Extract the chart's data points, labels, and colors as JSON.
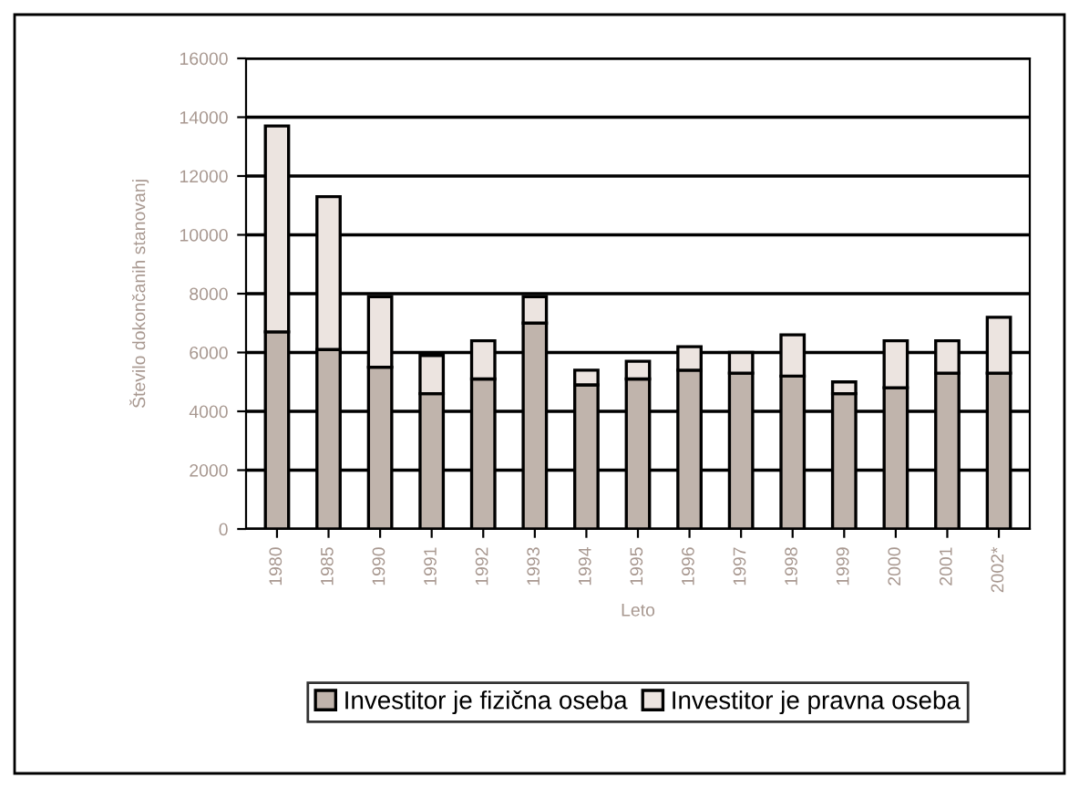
{
  "chart_data": {
    "type": "bar",
    "stacked": true,
    "ylabel": "Število dokončanih stanovanj",
    "xlabel": "Leto",
    "categories": [
      "1980",
      "1985",
      "1990",
      "1991",
      "1992",
      "1993",
      "1994",
      "1995",
      "1996",
      "1997",
      "1998",
      "1999",
      "2000",
      "2001",
      "2002*"
    ],
    "series": [
      {
        "name": "Investitor je fizična oseba",
        "color": "#c0b4ac",
        "values": [
          6700,
          6100,
          5500,
          4600,
          5100,
          7000,
          4900,
          5100,
          5400,
          5300,
          5200,
          4600,
          4800,
          5300,
          5300
        ]
      },
      {
        "name": "Investitor je pravna oseba",
        "color": "#ece4e0",
        "values": [
          7000,
          5200,
          2400,
          1300,
          1300,
          900,
          500,
          600,
          800,
          700,
          1400,
          400,
          1600,
          1100,
          1900
        ]
      }
    ],
    "ylim": [
      0,
      16000
    ],
    "yticks": [
      0,
      2000,
      4000,
      6000,
      8000,
      10000,
      12000,
      14000,
      16000
    ],
    "grid": "y",
    "legend": "bottom"
  }
}
